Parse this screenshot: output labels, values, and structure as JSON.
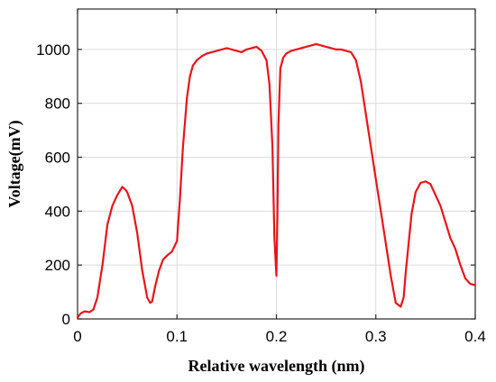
{
  "chart_data": {
    "type": "line",
    "title": "",
    "xlabel": "Relative wavelength (nm)",
    "ylabel": "Voltage(mV)",
    "xlim": [
      0,
      0.4
    ],
    "ylim": [
      0,
      1150
    ],
    "grid": true,
    "legend": "none",
    "x_ticks": [
      0,
      0.1,
      0.2,
      0.3,
      0.4
    ],
    "x_tick_labels": [
      "0",
      "0.1",
      "0.2",
      "0.3",
      "0.4"
    ],
    "y_ticks": [
      0,
      200,
      400,
      600,
      800,
      1000
    ],
    "y_tick_labels": [
      "0",
      "200",
      "400",
      "600",
      "800",
      "1000"
    ],
    "series": [
      {
        "color": "#e8141b",
        "x": [
          0,
          0.003,
          0.007,
          0.012,
          0.016,
          0.02,
          0.025,
          0.03,
          0.035,
          0.04,
          0.045,
          0.048,
          0.05,
          0.052,
          0.055,
          0.06,
          0.065,
          0.07,
          0.073,
          0.075,
          0.078,
          0.082,
          0.086,
          0.09,
          0.095,
          0.1,
          0.103,
          0.106,
          0.11,
          0.113,
          0.116,
          0.12,
          0.125,
          0.13,
          0.135,
          0.14,
          0.145,
          0.15,
          0.155,
          0.16,
          0.165,
          0.17,
          0.175,
          0.18,
          0.185,
          0.19,
          0.193,
          0.196,
          0.198,
          0.2,
          0.201,
          0.202,
          0.204,
          0.207,
          0.21,
          0.215,
          0.22,
          0.225,
          0.23,
          0.235,
          0.24,
          0.245,
          0.25,
          0.255,
          0.26,
          0.265,
          0.27,
          0.275,
          0.28,
          0.285,
          0.29,
          0.295,
          0.3,
          0.305,
          0.31,
          0.315,
          0.32,
          0.325,
          0.328,
          0.33,
          0.333,
          0.336,
          0.34,
          0.345,
          0.35,
          0.355,
          0.36,
          0.365,
          0.37,
          0.375,
          0.38,
          0.385,
          0.39,
          0.395,
          0.4
        ],
        "y": [
          5,
          20,
          28,
          25,
          35,
          80,
          200,
          350,
          420,
          460,
          490,
          480,
          470,
          450,
          420,
          320,
          180,
          80,
          60,
          65,
          120,
          180,
          220,
          235,
          250,
          290,
          450,
          640,
          820,
          900,
          940,
          960,
          975,
          985,
          990,
          995,
          1000,
          1005,
          1000,
          995,
          990,
          1000,
          1005,
          1010,
          995,
          960,
          870,
          640,
          300,
          160,
          380,
          720,
          930,
          970,
          985,
          995,
          1000,
          1005,
          1010,
          1015,
          1020,
          1015,
          1010,
          1005,
          1000,
          1000,
          995,
          990,
          960,
          880,
          760,
          640,
          520,
          400,
          280,
          160,
          60,
          45,
          80,
          170,
          280,
          390,
          470,
          505,
          510,
          500,
          460,
          420,
          360,
          300,
          260,
          200,
          150,
          130,
          125
        ]
      }
    ]
  }
}
